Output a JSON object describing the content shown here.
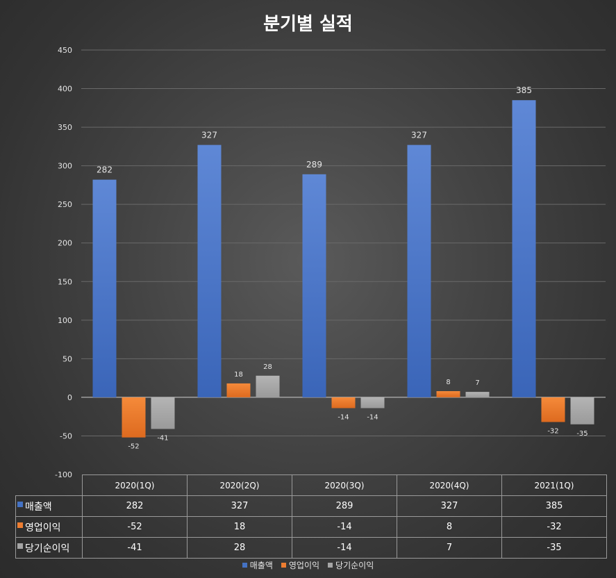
{
  "chart_data": {
    "type": "bar",
    "title": "분기별 실적",
    "categories": [
      "2020(1Q)",
      "2020(2Q)",
      "2020(3Q)",
      "2020(4Q)",
      "2021(1Q)"
    ],
    "series": [
      {
        "name": "매출액",
        "color": "#4472c4",
        "values": [
          282,
          327,
          289,
          327,
          385
        ]
      },
      {
        "name": "영업이익",
        "color": "#ed7d31",
        "values": [
          -52,
          18,
          -14,
          8,
          -32
        ]
      },
      {
        "name": "당기순이익",
        "color": "#a5a5a5",
        "values": [
          -41,
          28,
          -14,
          7,
          -35
        ]
      }
    ],
    "ylim": [
      -100,
      450
    ],
    "yticks": [
      450,
      400,
      350,
      300,
      250,
      200,
      150,
      100,
      50,
      0,
      -50,
      -100
    ],
    "grid": true,
    "legend": "bottom",
    "data_table": true
  }
}
